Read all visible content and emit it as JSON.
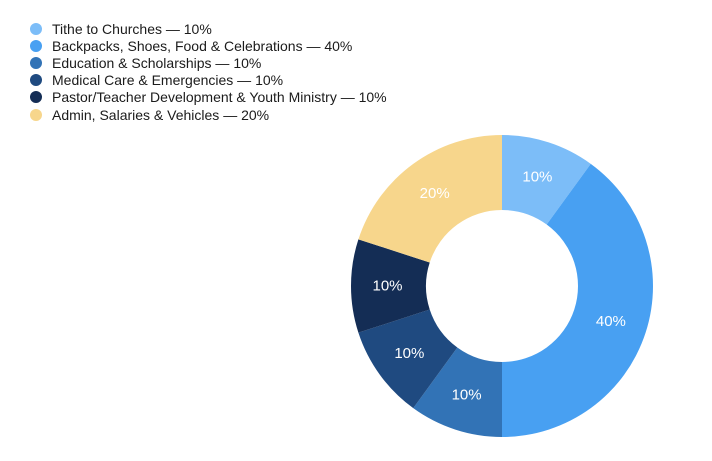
{
  "chart_data": {
    "type": "pie",
    "variant": "donut",
    "categories": [
      "Tithe to Churches",
      "Backpacks, Shoes, Food & Celebrations",
      "Education & Scholarships",
      "Medical Care & Emergencies",
      "Pastor/Teacher Development & Youth Ministry",
      "Admin, Salaries & Vehicles"
    ],
    "values": [
      10,
      40,
      10,
      10,
      10,
      20
    ],
    "legend_labels": [
      "Tithe to Churches — 10%",
      "Backpacks, Shoes, Food & Celebrations — 40%",
      "Education & Scholarships — 10%",
      "Medical Care & Emergencies — 10%",
      "Pastor/Teacher Development & Youth Ministry — 10%",
      "Admin, Salaries & Vehicles — 20%"
    ],
    "slice_labels": [
      "10%",
      "40%",
      "10%",
      "10%",
      "10%",
      "20%"
    ],
    "colors": [
      "#7cbdf8",
      "#48a0f2",
      "#3273b6",
      "#1f4a80",
      "#142d55",
      "#f7d68c"
    ],
    "label_colors": [
      "#ffffff",
      "#ffffff",
      "#ffffff",
      "#ffffff",
      "#ffffff",
      "#ffffff"
    ],
    "legend_placement": "top-left",
    "start_angle": "12 o'clock",
    "direction": "clockwise"
  }
}
